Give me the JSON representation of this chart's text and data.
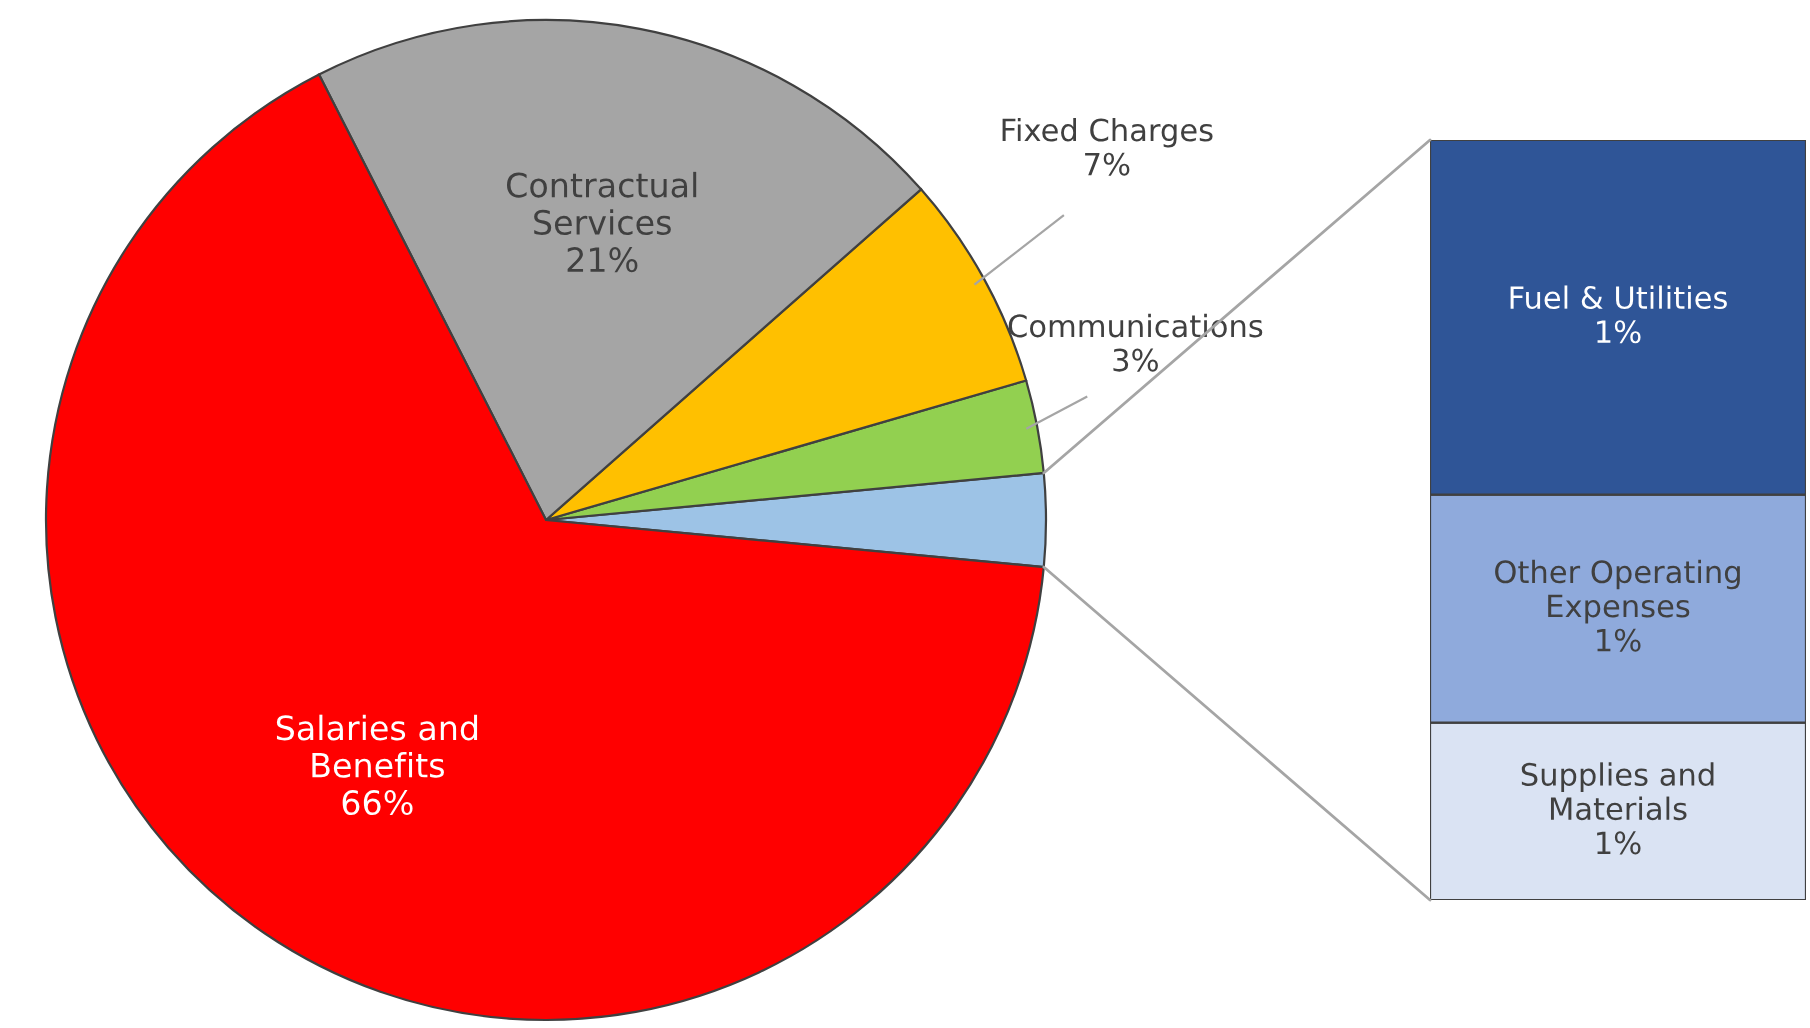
{
  "chart_data": [
    {
      "type": "pie",
      "categories": [
        null,
        "Communications",
        "Fixed Charges",
        "Contractual\nServices",
        "Salaries and\nBenefits"
      ],
      "values": [
        3,
        3,
        7,
        21,
        66
      ],
      "value_labels": [
        null,
        "3%",
        "7%",
        "21%",
        "66%"
      ],
      "colors": [
        "#9dc3e6",
        "#92d050",
        "#ffc000",
        "#a5a5a5",
        "#ff0000"
      ]
    },
    {
      "type": "bar",
      "stacked": true,
      "categories": [
        null
      ],
      "series": [
        {
          "name": "Supplies and\nMaterials",
          "color": "#dae3f3",
          "values": [
            0.7
          ],
          "value_labels": [
            "1%"
          ]
        },
        {
          "name": "Other Operating\nExpenses",
          "color": "#8faadc",
          "values": [
            0.9
          ],
          "value_labels": [
            "1%"
          ]
        },
        {
          "name": "Fuel & Utilities",
          "color": "#2f5597",
          "values": [
            1.4
          ],
          "value_labels": [
            "1%"
          ]
        }
      ]
    }
  ]
}
